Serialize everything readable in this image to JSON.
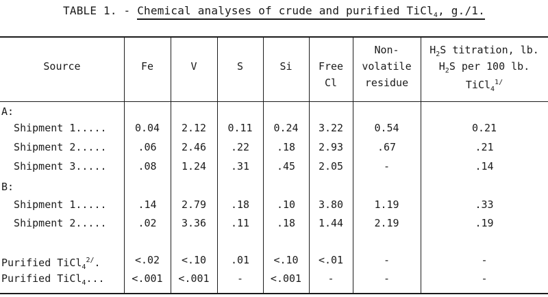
{
  "title": {
    "prefix": "TABLE 1. - ",
    "main": "Chemical analyses of crude and purified TiCl",
    "sub": "4",
    "suffix": ", g./1."
  },
  "headers": {
    "source": "Source",
    "fe": "Fe",
    "v": "V",
    "s": "S",
    "si": "Si",
    "free_cl_1": "Free",
    "free_cl_2": "Cl",
    "nonvol_1": "Non-",
    "nonvol_2": "volatile",
    "nonvol_3": "residue",
    "h2s_1a": "H",
    "h2s_1b": "2",
    "h2s_1c": "S titration, lb.",
    "h2s_2a": "H",
    "h2s_2b": "2",
    "h2s_2c": "S per 100 lb.",
    "h2s_3a": "TiCl",
    "h2s_3b": "4",
    "h2s_3c": "1/"
  },
  "groups": {
    "a": "A:",
    "b": "B:"
  },
  "rows": [
    {
      "source": "  Shipment 1.....",
      "fe": "0.04",
      "v": "2.12",
      "s": "0.11",
      "si": "0.24",
      "cl": "3.22",
      "res": "0.54",
      "h2s": "0.21"
    },
    {
      "source": "  Shipment 2.....",
      "fe": ".06",
      "v": "2.46",
      "s": ".22",
      "si": ".18",
      "cl": "2.93",
      "res": ".67",
      "h2s": ".21"
    },
    {
      "source": "  Shipment 3.....",
      "fe": ".08",
      "v": "1.24",
      "s": ".31",
      "si": ".45",
      "cl": "2.05",
      "res": "-",
      "h2s": ".14"
    },
    {
      "source": "  Shipment 1.....",
      "fe": ".14",
      "v": "2.79",
      "s": ".18",
      "si": ".10",
      "cl": "3.80",
      "res": "1.19",
      "h2s": ".33"
    },
    {
      "source": "  Shipment 2.....",
      "fe": ".02",
      "v": "3.36",
      "s": ".11",
      "si": ".18",
      "cl": "1.44",
      "res": "2.19",
      "h2s": ".19"
    },
    {
      "source_a": "Purified TiCl",
      "source_b": "4",
      "source_c": "2/",
      "source_d": ".",
      "fe": "<.02",
      "v": "<.10",
      "s": ".01",
      "si": "<.10",
      "cl": "<.01",
      "res": "-",
      "h2s": "-"
    },
    {
      "source_a": "Purified TiCl",
      "source_b": "4",
      "source_d": "...",
      "fe": "<.001",
      "v": "<.001",
      "s": "-",
      "si": "<.001",
      "cl": "-",
      "res": "-",
      "h2s": "-"
    }
  ]
}
